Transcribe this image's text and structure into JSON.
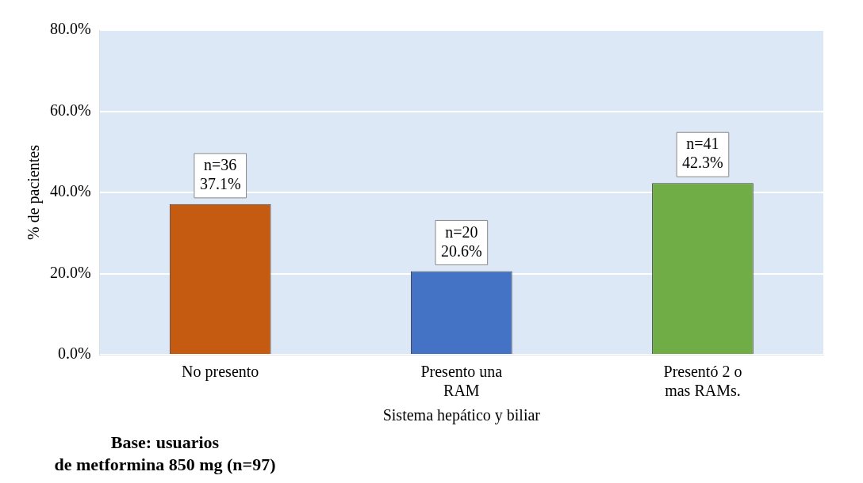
{
  "chart_data": {
    "type": "bar",
    "xlabel": "Sistema hepático y biliar",
    "ylabel": "% de pacientes",
    "categories": [
      "No presento",
      "Presento una RAM",
      "Presentó 2 o mas RAMs."
    ],
    "values": [
      37.1,
      20.6,
      42.3
    ],
    "colors": [
      "#c55a11",
      "#4472c4",
      "#70ad47"
    ],
    "value_labels": [
      "n=36\n37.1%",
      "n=20\n20.6%",
      "n=41\n42.3%"
    ],
    "ylim": [
      0,
      80
    ],
    "yticks": [
      {
        "value": 0,
        "label": "0.0%"
      },
      {
        "value": 20,
        "label": "20.0%"
      },
      {
        "value": 40,
        "label": "40.0%"
      },
      {
        "value": 60,
        "label": "60.0%"
      },
      {
        "value": 80,
        "label": "80.0%"
      }
    ],
    "grid": "y",
    "legend": false,
    "annotations": [
      "Base: usuarios\nde metformina 850 mg (n=97)"
    ]
  }
}
